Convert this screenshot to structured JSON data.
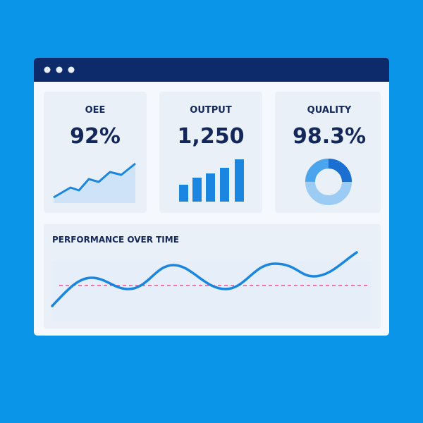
{
  "cards": [
    {
      "title": "OEE",
      "value": "92%"
    },
    {
      "title": "OUTPUT",
      "value": "1,250"
    },
    {
      "title": "QUALITY",
      "value": "98.3%"
    }
  ],
  "performance": {
    "title": "PERFORMANCE OVER TIME"
  }
}
